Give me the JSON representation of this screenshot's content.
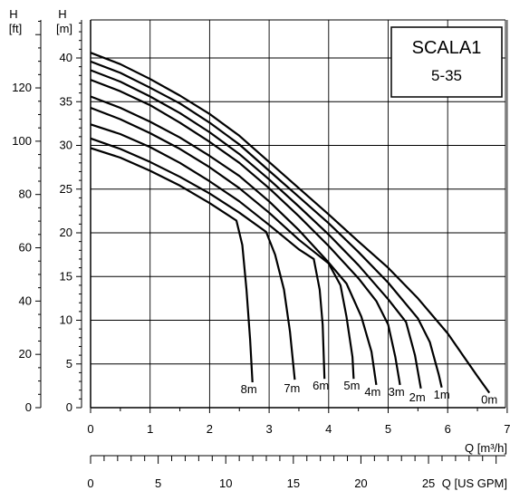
{
  "chart_data": {
    "type": "line",
    "title": "SCALA1",
    "subtitle": "5-35",
    "ylabel_ft": {
      "unit": "H",
      "unit2": "[ft]"
    },
    "ylabel_m": {
      "unit": "H",
      "unit2": "[m]"
    },
    "xlabel_m3h": "Q [m³/h]",
    "xlabel_gpm": "Q [US GPM]",
    "x_ticks_m3h": [
      "0",
      "1",
      "2",
      "3",
      "4",
      "5",
      "6",
      "7"
    ],
    "y_ticks_m": [
      "0",
      "5",
      "10",
      "15",
      "20",
      "25",
      "30",
      "35",
      "40"
    ],
    "y_ticks_ft": [
      "0",
      "20",
      "40",
      "60",
      "80",
      "100",
      "120"
    ],
    "x_ticks_gpm": [
      "0",
      "5",
      "10",
      "15",
      "20",
      "25"
    ],
    "xlim": [
      0,
      7
    ],
    "ylim": [
      0,
      45
    ],
    "grid": true,
    "series": [
      {
        "name": "0m",
        "points": [
          [
            0,
            40.6
          ],
          [
            0.5,
            39.3
          ],
          [
            1,
            37.6
          ],
          [
            1.5,
            35.7
          ],
          [
            2,
            33.6
          ],
          [
            2.5,
            31.1
          ],
          [
            3,
            28.1
          ],
          [
            3.5,
            25.1
          ],
          [
            4,
            22.1
          ],
          [
            4.5,
            19
          ],
          [
            5,
            16
          ],
          [
            5.5,
            12.5
          ],
          [
            6,
            8.5
          ],
          [
            6.5,
            3.6
          ],
          [
            6.7,
            1.7
          ]
        ]
      },
      {
        "name": "1m",
        "points": [
          [
            0,
            39.6
          ],
          [
            0.5,
            38.3
          ],
          [
            1,
            36.6
          ],
          [
            1.5,
            34.8
          ],
          [
            2,
            32.6
          ],
          [
            2.5,
            30.1
          ],
          [
            3,
            27.1
          ],
          [
            3.5,
            24.1
          ],
          [
            4,
            21.1
          ],
          [
            4.5,
            17.8
          ],
          [
            5,
            14.3
          ],
          [
            5.5,
            10.2
          ],
          [
            5.7,
            7.5
          ],
          [
            5.85,
            3.8
          ],
          [
            5.9,
            2.3
          ]
        ]
      },
      {
        "name": "2m",
        "points": [
          [
            0,
            38.6
          ],
          [
            0.5,
            37.3
          ],
          [
            1,
            35.6
          ],
          [
            1.5,
            33.7
          ],
          [
            2,
            31.5
          ],
          [
            2.5,
            29
          ],
          [
            3,
            26.1
          ],
          [
            3.5,
            23
          ],
          [
            4,
            19.8
          ],
          [
            4.5,
            16.3
          ],
          [
            5,
            12.4
          ],
          [
            5.3,
            9.8
          ],
          [
            5.45,
            6
          ],
          [
            5.55,
            2.2
          ]
        ]
      },
      {
        "name": "3m",
        "points": [
          [
            0,
            37.5
          ],
          [
            0.5,
            36.2
          ],
          [
            1,
            34.6
          ],
          [
            1.5,
            32.6
          ],
          [
            2,
            30.4
          ],
          [
            2.5,
            28
          ],
          [
            3,
            25.1
          ],
          [
            3.5,
            21.9
          ],
          [
            4,
            18.5
          ],
          [
            4.5,
            14.8
          ],
          [
            4.8,
            12.2
          ],
          [
            5,
            9.5
          ],
          [
            5.12,
            5.8
          ],
          [
            5.2,
            2.6
          ]
        ]
      },
      {
        "name": "4m",
        "points": [
          [
            0,
            35.6
          ],
          [
            0.5,
            34.3
          ],
          [
            1,
            32.7
          ],
          [
            1.5,
            30.9
          ],
          [
            2,
            28.8
          ],
          [
            2.5,
            26.5
          ],
          [
            3,
            23.6
          ],
          [
            3.5,
            20.3
          ],
          [
            4,
            16.6
          ],
          [
            4.3,
            14.2
          ],
          [
            4.55,
            10.4
          ],
          [
            4.72,
            6.4
          ],
          [
            4.8,
            2.6
          ]
        ]
      },
      {
        "name": "5m",
        "points": [
          [
            0,
            34.3
          ],
          [
            0.5,
            33
          ],
          [
            1,
            31.4
          ],
          [
            1.5,
            29.6
          ],
          [
            2,
            27.5
          ],
          [
            2.5,
            25.1
          ],
          [
            3,
            22.3
          ],
          [
            3.5,
            19.2
          ],
          [
            4,
            16.5
          ],
          [
            4.2,
            14
          ],
          [
            4.3,
            10.4
          ],
          [
            4.4,
            5.8
          ],
          [
            4.42,
            3.3
          ]
        ]
      },
      {
        "name": "6m",
        "points": [
          [
            0,
            32.4
          ],
          [
            0.5,
            31.3
          ],
          [
            1,
            29.8
          ],
          [
            1.5,
            28
          ],
          [
            2,
            25.9
          ],
          [
            2.5,
            23.6
          ],
          [
            3,
            20.9
          ],
          [
            3.5,
            18.1
          ],
          [
            3.75,
            17
          ],
          [
            3.85,
            13.5
          ],
          [
            3.9,
            9.5
          ],
          [
            3.93,
            3.3
          ]
        ]
      },
      {
        "name": "7m",
        "points": [
          [
            0,
            30.8
          ],
          [
            0.5,
            29.6
          ],
          [
            1,
            28.1
          ],
          [
            1.5,
            26.4
          ],
          [
            2,
            24.5
          ],
          [
            2.5,
            22.3
          ],
          [
            2.95,
            20.1
          ],
          [
            3.1,
            17.5
          ],
          [
            3.25,
            13.5
          ],
          [
            3.35,
            8.7
          ],
          [
            3.43,
            3.2
          ]
        ]
      },
      {
        "name": "8m",
        "points": [
          [
            0,
            29.7
          ],
          [
            0.5,
            28.6
          ],
          [
            1,
            27.1
          ],
          [
            1.5,
            25.4
          ],
          [
            2,
            23.4
          ],
          [
            2.45,
            21.4
          ],
          [
            2.55,
            18.6
          ],
          [
            2.62,
            13.5
          ],
          [
            2.68,
            7.8
          ],
          [
            2.72,
            2.9
          ]
        ]
      }
    ]
  }
}
